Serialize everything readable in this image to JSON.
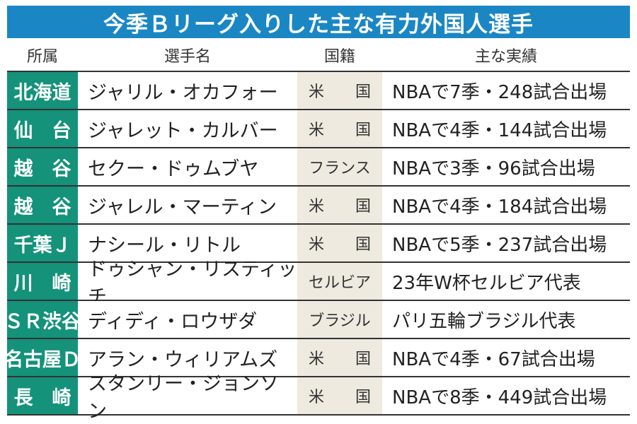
{
  "title": "今季Ｂリーグ入りした主な有力外国人選手",
  "headers": {
    "team": "所属",
    "player": "選手名",
    "nationality": "国籍",
    "record": "主な実績"
  },
  "colors": {
    "title_bg": "#1a87c4",
    "team_bg": "#14927a",
    "nationality_bg": "#eeeadf"
  },
  "rows": [
    {
      "team": "北海道",
      "player": "ジャリル・オカフォー",
      "nationality": "米　　国",
      "record": "NBAで7季・248試合出場"
    },
    {
      "team": "仙　台",
      "player": "ジャレット・カルバー",
      "nationality": "米　　国",
      "record": "NBAで4季・144試合出場"
    },
    {
      "team": "越　谷",
      "player": "セクー・ドゥムブヤ",
      "nationality": "フランス",
      "record": "NBAで3季・96試合出場"
    },
    {
      "team": "越　谷",
      "player": "ジャレル・マーティン",
      "nationality": "米　　国",
      "record": "NBAで4季・184試合出場"
    },
    {
      "team": "千葉Ｊ",
      "player": "ナシール・リトル",
      "nationality": "米　　国",
      "record": "NBAで5季・237試合出場"
    },
    {
      "team": "川　崎",
      "player": "ドゥシャン・リスティッチ",
      "nationality": "セルビア",
      "record": "23年W杯セルビア代表"
    },
    {
      "team": "ＳＲ渋谷",
      "player": "ディディ・ロウザダ",
      "nationality": "ブラジル",
      "record": "パリ五輪ブラジル代表"
    },
    {
      "team": "名古屋Ｄ",
      "player": "アラン・ウィリアムズ",
      "nationality": "米　　国",
      "record": "NBAで4季・67試合出場"
    },
    {
      "team": "長　崎",
      "player": "スタンリー・ジョンソン",
      "nationality": "米　　国",
      "record": "NBAで8季・449試合出場"
    }
  ]
}
